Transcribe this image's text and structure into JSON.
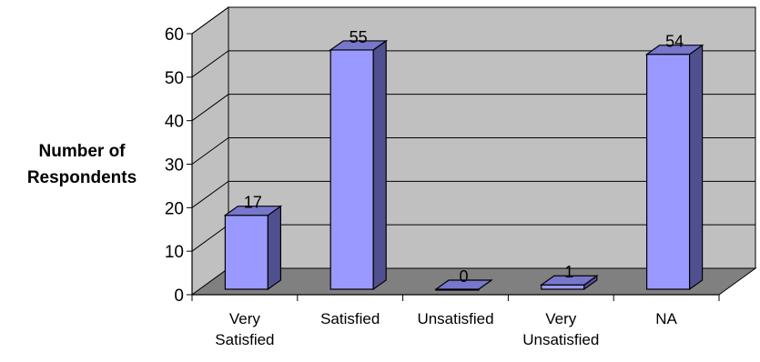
{
  "chart_data": {
    "type": "bar",
    "style": "3d-column",
    "categories": [
      [
        "Very",
        "Satisfied"
      ],
      [
        "Satisfied"
      ],
      [
        "Unsatisfied"
      ],
      [
        "Very",
        "Unsatisfied"
      ],
      [
        "NA"
      ]
    ],
    "values": [
      17,
      55,
      0,
      1,
      54
    ],
    "ylabel": [
      "Number of",
      "Respondents"
    ],
    "xlabel": "",
    "ylim": [
      0,
      60
    ],
    "yticks": [
      0,
      10,
      20,
      30,
      40,
      50,
      60
    ],
    "grid": true,
    "legend": "none",
    "colors": {
      "bar_front": "#9999ff",
      "bar_side": "#505090",
      "bar_top": "#7777cc",
      "back_wall": "#c0c0c0",
      "side_wall": "#c0c0c0",
      "floor": "#808080",
      "grid": "#000000"
    }
  }
}
